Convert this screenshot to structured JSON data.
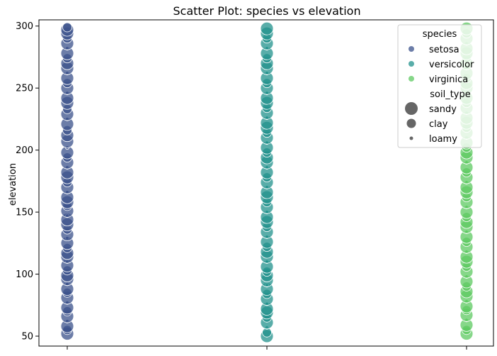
{
  "chart_data": {
    "type": "scatter",
    "title": "Scatter Plot: species vs elevation",
    "xlabel": "",
    "ylabel": "elevation",
    "categories": [
      "setosa",
      "versicolor",
      "virginica"
    ],
    "xtick_labels": [
      "",
      "",
      ""
    ],
    "ylim": [
      42,
      305
    ],
    "yticks": [
      50,
      100,
      150,
      200,
      250,
      300
    ],
    "grid": false,
    "legend": {
      "placement": "top-right",
      "hue_title": "species",
      "hue_entries": [
        {
          "label": "setosa",
          "color": "#3b528b"
        },
        {
          "label": "versicolor",
          "color": "#21918c"
        },
        {
          "label": "virginica",
          "color": "#5ec962"
        }
      ],
      "size_title": "soil_type",
      "size_entries": [
        {
          "label": "sandy",
          "radius": 9
        },
        {
          "label": "clay",
          "radius": 6.5
        },
        {
          "label": "loamy",
          "radius": 2.5
        }
      ]
    },
    "series": [
      {
        "category": "setosa",
        "color": "#3b528b",
        "points": [
          {
            "y": 52,
            "s": "sandy"
          },
          {
            "y": 55,
            "s": "clay"
          },
          {
            "y": 58,
            "s": "sandy"
          },
          {
            "y": 62,
            "s": "loamy"
          },
          {
            "y": 66,
            "s": "sandy"
          },
          {
            "y": 70,
            "s": "clay"
          },
          {
            "y": 73,
            "s": "sandy"
          },
          {
            "y": 77,
            "s": "loamy"
          },
          {
            "y": 81,
            "s": "sandy"
          },
          {
            "y": 85,
            "s": "clay"
          },
          {
            "y": 88,
            "s": "sandy"
          },
          {
            "y": 92,
            "s": "loamy"
          },
          {
            "y": 96,
            "s": "sandy"
          },
          {
            "y": 99,
            "s": "sandy"
          },
          {
            "y": 103,
            "s": "clay"
          },
          {
            "y": 107,
            "s": "sandy"
          },
          {
            "y": 110,
            "s": "loamy"
          },
          {
            "y": 114,
            "s": "sandy"
          },
          {
            "y": 117,
            "s": "sandy"
          },
          {
            "y": 121,
            "s": "clay"
          },
          {
            "y": 125,
            "s": "sandy"
          },
          {
            "y": 129,
            "s": "loamy"
          },
          {
            "y": 132,
            "s": "sandy"
          },
          {
            "y": 136,
            "s": "clay"
          },
          {
            "y": 140,
            "s": "sandy"
          },
          {
            "y": 144,
            "s": "sandy"
          },
          {
            "y": 147,
            "s": "loamy"
          },
          {
            "y": 151,
            "s": "sandy"
          },
          {
            "y": 155,
            "s": "clay"
          },
          {
            "y": 158,
            "s": "sandy"
          },
          {
            "y": 162,
            "s": "sandy"
          },
          {
            "y": 166,
            "s": "loamy"
          },
          {
            "y": 170,
            "s": "sandy"
          },
          {
            "y": 174,
            "s": "clay"
          },
          {
            "y": 178,
            "s": "sandy"
          },
          {
            "y": 182,
            "s": "sandy"
          },
          {
            "y": 186,
            "s": "loamy"
          },
          {
            "y": 190,
            "s": "sandy"
          },
          {
            "y": 194,
            "s": "clay"
          },
          {
            "y": 198,
            "s": "sandy"
          },
          {
            "y": 202,
            "s": "loamy"
          },
          {
            "y": 207,
            "s": "sandy"
          },
          {
            "y": 212,
            "s": "sandy"
          },
          {
            "y": 216,
            "s": "clay"
          },
          {
            "y": 221,
            "s": "sandy"
          },
          {
            "y": 225,
            "s": "loamy"
          },
          {
            "y": 229,
            "s": "sandy"
          },
          {
            "y": 233,
            "s": "clay"
          },
          {
            "y": 238,
            "s": "sandy"
          },
          {
            "y": 242,
            "s": "sandy"
          },
          {
            "y": 246,
            "s": "loamy"
          },
          {
            "y": 250,
            "s": "sandy"
          },
          {
            "y": 254,
            "s": "clay"
          },
          {
            "y": 258,
            "s": "sandy"
          },
          {
            "y": 262,
            "s": "loamy"
          },
          {
            "y": 266,
            "s": "sandy"
          },
          {
            "y": 270,
            "s": "sandy"
          },
          {
            "y": 274,
            "s": "clay"
          },
          {
            "y": 278,
            "s": "sandy"
          },
          {
            "y": 282,
            "s": "loamy"
          },
          {
            "y": 286,
            "s": "sandy"
          },
          {
            "y": 290,
            "s": "clay"
          },
          {
            "y": 294,
            "s": "sandy"
          },
          {
            "y": 297,
            "s": "sandy"
          },
          {
            "y": 299,
            "s": "clay"
          }
        ]
      },
      {
        "category": "versicolor",
        "color": "#21918c",
        "points": [
          {
            "y": 50,
            "s": "sandy"
          },
          {
            "y": 53,
            "s": "clay"
          },
          {
            "y": 57,
            "s": "loamy"
          },
          {
            "y": 61,
            "s": "sandy"
          },
          {
            "y": 65,
            "s": "clay"
          },
          {
            "y": 69,
            "s": "sandy"
          },
          {
            "y": 72,
            "s": "sandy"
          },
          {
            "y": 76,
            "s": "loamy"
          },
          {
            "y": 80,
            "s": "sandy"
          },
          {
            "y": 84,
            "s": "clay"
          },
          {
            "y": 88,
            "s": "sandy"
          },
          {
            "y": 91,
            "s": "loamy"
          },
          {
            "y": 95,
            "s": "sandy"
          },
          {
            "y": 99,
            "s": "sandy"
          },
          {
            "y": 102,
            "s": "clay"
          },
          {
            "y": 106,
            "s": "sandy"
          },
          {
            "y": 110,
            "s": "loamy"
          },
          {
            "y": 114,
            "s": "sandy"
          },
          {
            "y": 118,
            "s": "sandy"
          },
          {
            "y": 122,
            "s": "clay"
          },
          {
            "y": 126,
            "s": "sandy"
          },
          {
            "y": 130,
            "s": "loamy"
          },
          {
            "y": 134,
            "s": "sandy"
          },
          {
            "y": 138,
            "s": "clay"
          },
          {
            "y": 142,
            "s": "sandy"
          },
          {
            "y": 146,
            "s": "sandy"
          },
          {
            "y": 150,
            "s": "loamy"
          },
          {
            "y": 154,
            "s": "sandy"
          },
          {
            "y": 158,
            "s": "clay"
          },
          {
            "y": 162,
            "s": "sandy"
          },
          {
            "y": 166,
            "s": "sandy"
          },
          {
            "y": 170,
            "s": "loamy"
          },
          {
            "y": 174,
            "s": "sandy"
          },
          {
            "y": 178,
            "s": "clay"
          },
          {
            "y": 182,
            "s": "sandy"
          },
          {
            "y": 186,
            "s": "loamy"
          },
          {
            "y": 190,
            "s": "sandy"
          },
          {
            "y": 194,
            "s": "sandy"
          },
          {
            "y": 198,
            "s": "clay"
          },
          {
            "y": 202,
            "s": "sandy"
          },
          {
            "y": 206,
            "s": "loamy"
          },
          {
            "y": 210,
            "s": "sandy"
          },
          {
            "y": 214,
            "s": "clay"
          },
          {
            "y": 218,
            "s": "sandy"
          },
          {
            "y": 222,
            "s": "sandy"
          },
          {
            "y": 226,
            "s": "loamy"
          },
          {
            "y": 230,
            "s": "sandy"
          },
          {
            "y": 234,
            "s": "clay"
          },
          {
            "y": 238,
            "s": "sandy"
          },
          {
            "y": 242,
            "s": "sandy"
          },
          {
            "y": 246,
            "s": "loamy"
          },
          {
            "y": 250,
            "s": "sandy"
          },
          {
            "y": 254,
            "s": "clay"
          },
          {
            "y": 258,
            "s": "sandy"
          },
          {
            "y": 262,
            "s": "loamy"
          },
          {
            "y": 266,
            "s": "sandy"
          },
          {
            "y": 270,
            "s": "sandy"
          },
          {
            "y": 274,
            "s": "clay"
          },
          {
            "y": 278,
            "s": "sandy"
          },
          {
            "y": 282,
            "s": "loamy"
          },
          {
            "y": 286,
            "s": "sandy"
          },
          {
            "y": 290,
            "s": "clay"
          },
          {
            "y": 294,
            "s": "sandy"
          },
          {
            "y": 298,
            "s": "sandy"
          }
        ]
      },
      {
        "category": "virginica",
        "color": "#5ec962",
        "points": [
          {
            "y": 52,
            "s": "sandy"
          },
          {
            "y": 55,
            "s": "clay"
          },
          {
            "y": 59,
            "s": "sandy"
          },
          {
            "y": 63,
            "s": "loamy"
          },
          {
            "y": 67,
            "s": "sandy"
          },
          {
            "y": 71,
            "s": "clay"
          },
          {
            "y": 74,
            "s": "sandy"
          },
          {
            "y": 78,
            "s": "loamy"
          },
          {
            "y": 82,
            "s": "sandy"
          },
          {
            "y": 86,
            "s": "sandy"
          },
          {
            "y": 90,
            "s": "clay"
          },
          {
            "y": 94,
            "s": "sandy"
          },
          {
            "y": 98,
            "s": "loamy"
          },
          {
            "y": 102,
            "s": "sandy"
          },
          {
            "y": 106,
            "s": "clay"
          },
          {
            "y": 110,
            "s": "sandy"
          },
          {
            "y": 114,
            "s": "sandy"
          },
          {
            "y": 118,
            "s": "loamy"
          },
          {
            "y": 122,
            "s": "sandy"
          },
          {
            "y": 126,
            "s": "clay"
          },
          {
            "y": 130,
            "s": "sandy"
          },
          {
            "y": 134,
            "s": "loamy"
          },
          {
            "y": 138,
            "s": "sandy"
          },
          {
            "y": 142,
            "s": "sandy"
          },
          {
            "y": 146,
            "s": "clay"
          },
          {
            "y": 150,
            "s": "sandy"
          },
          {
            "y": 154,
            "s": "loamy"
          },
          {
            "y": 158,
            "s": "sandy"
          },
          {
            "y": 162,
            "s": "clay"
          },
          {
            "y": 166,
            "s": "sandy"
          },
          {
            "y": 170,
            "s": "sandy"
          },
          {
            "y": 174,
            "s": "loamy"
          },
          {
            "y": 178,
            "s": "sandy"
          },
          {
            "y": 182,
            "s": "clay"
          },
          {
            "y": 186,
            "s": "sandy"
          },
          {
            "y": 190,
            "s": "loamy"
          },
          {
            "y": 194,
            "s": "sandy"
          },
          {
            "y": 198,
            "s": "sandy"
          },
          {
            "y": 202,
            "s": "clay"
          },
          {
            "y": 206,
            "s": "sandy"
          },
          {
            "y": 210,
            "s": "loamy"
          },
          {
            "y": 214,
            "s": "sandy"
          },
          {
            "y": 218,
            "s": "clay"
          },
          {
            "y": 222,
            "s": "sandy"
          },
          {
            "y": 226,
            "s": "sandy"
          },
          {
            "y": 230,
            "s": "loamy"
          },
          {
            "y": 234,
            "s": "sandy"
          },
          {
            "y": 238,
            "s": "clay"
          },
          {
            "y": 242,
            "s": "sandy"
          },
          {
            "y": 246,
            "s": "loamy"
          },
          {
            "y": 250,
            "s": "sandy"
          },
          {
            "y": 254,
            "s": "sandy"
          },
          {
            "y": 258,
            "s": "clay"
          },
          {
            "y": 262,
            "s": "sandy"
          },
          {
            "y": 266,
            "s": "loamy"
          },
          {
            "y": 270,
            "s": "sandy"
          },
          {
            "y": 274,
            "s": "clay"
          },
          {
            "y": 278,
            "s": "sandy"
          },
          {
            "y": 282,
            "s": "sandy"
          },
          {
            "y": 286,
            "s": "loamy"
          },
          {
            "y": 290,
            "s": "sandy"
          },
          {
            "y": 294,
            "s": "clay"
          },
          {
            "y": 298,
            "s": "sandy"
          }
        ]
      }
    ]
  }
}
